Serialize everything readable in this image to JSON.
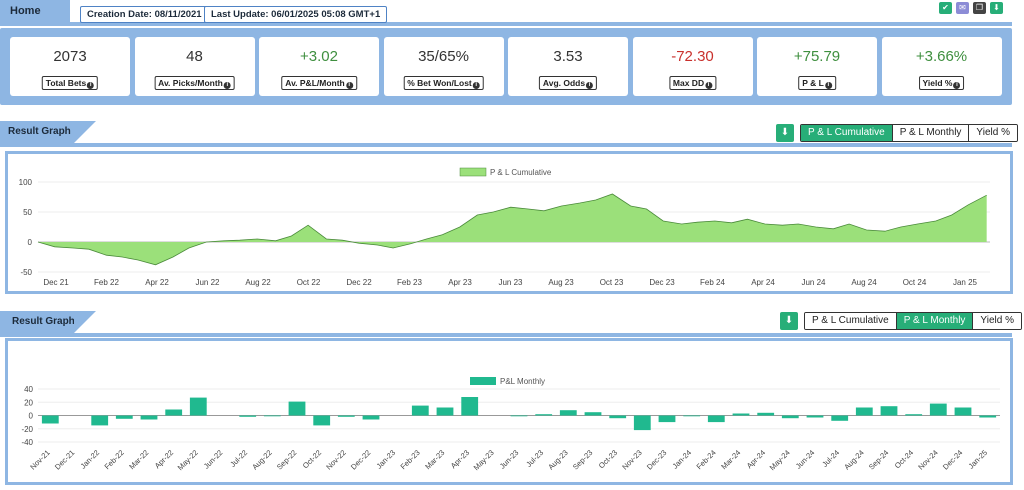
{
  "header": {
    "home_label": "Home",
    "creation_date": "Creation Date: 08/11/2021",
    "last_update": "Last Update: 06/01/2025 05:08 GMT+1",
    "icons": [
      {
        "name": "check-icon",
        "color": "#27ae78",
        "glyph": "✔"
      },
      {
        "name": "mail-icon",
        "color": "#8c8cd6",
        "glyph": "✉"
      },
      {
        "name": "copy-icon",
        "color": "#444444",
        "glyph": "❐"
      },
      {
        "name": "download-icon",
        "color": "#27ae78",
        "glyph": "⬇"
      }
    ]
  },
  "stats": [
    {
      "value": "2073",
      "label": "Total Bets",
      "tone": ""
    },
    {
      "value": "48",
      "label": "Av. Picks/Month",
      "tone": ""
    },
    {
      "value": "+3.02",
      "label": "Av. P&L/Month",
      "tone": "pos"
    },
    {
      "value": "35/65%",
      "label": "% Bet Won/Lost",
      "tone": ""
    },
    {
      "value": "3.53",
      "label": "Avg. Odds",
      "tone": ""
    },
    {
      "value": "-72.30",
      "label": "Max DD",
      "tone": "neg"
    },
    {
      "value": "+75.79",
      "label": "P & L",
      "tone": "pos"
    },
    {
      "value": "+3.66%",
      "label": "Yield %",
      "tone": "pos"
    }
  ],
  "graph1": {
    "title": "Result Graph",
    "buttons": [
      "P & L Cumulative",
      "P & L Monthly",
      "Yield %"
    ],
    "active": 0
  },
  "graph2": {
    "title": "Result Graph",
    "buttons": [
      "P & L Cumulative",
      "P & L Monthly",
      "Yield %"
    ],
    "active": 1
  },
  "colors": {
    "accent": "#27ae78",
    "header_blue": "#8eb6e3",
    "area_fill": "#9be07a",
    "area_stroke": "#4a8a3a",
    "bar_fill": "#20b98f"
  },
  "chart_data": [
    {
      "type": "area",
      "legend": "P & L Cumulative",
      "ylim": [
        -50,
        100
      ],
      "yticks": [
        100,
        50,
        0,
        -50
      ],
      "xticks": [
        "Dec 21",
        "Feb 22",
        "Apr 22",
        "Jun 22",
        "Aug 22",
        "Oct 22",
        "Dec 22",
        "Feb 23",
        "Apr 23",
        "Jun 23",
        "Aug 23",
        "Oct 23",
        "Dec 23",
        "Feb 24",
        "Apr 24",
        "Jun 24",
        "Aug 24",
        "Oct 24",
        "Jan 25"
      ],
      "x": [
        "2021-11-20",
        "2021-12-10",
        "2022-01-01",
        "2022-01-20",
        "2022-02-10",
        "2022-03-01",
        "2022-03-20",
        "2022-04-10",
        "2022-05-01",
        "2022-05-20",
        "2022-06-10",
        "2022-07-01",
        "2022-07-20",
        "2022-08-10",
        "2022-09-01",
        "2022-09-20",
        "2022-10-10",
        "2022-11-01",
        "2022-11-20",
        "2022-12-10",
        "2023-01-01",
        "2023-01-20",
        "2023-02-10",
        "2023-03-01",
        "2023-03-20",
        "2023-04-10",
        "2023-05-01",
        "2023-05-20",
        "2023-06-10",
        "2023-07-01",
        "2023-07-20",
        "2023-08-10",
        "2023-09-01",
        "2023-09-20",
        "2023-10-10",
        "2023-11-01",
        "2023-11-20",
        "2023-12-10",
        "2024-01-01",
        "2024-01-20",
        "2024-02-10",
        "2024-03-01",
        "2024-03-20",
        "2024-04-10",
        "2024-05-01",
        "2024-05-20",
        "2024-06-10",
        "2024-07-01",
        "2024-07-20",
        "2024-08-10",
        "2024-09-01",
        "2024-09-20",
        "2024-10-10",
        "2024-11-01",
        "2024-11-20",
        "2024-12-10",
        "2025-01-01"
      ],
      "y": [
        0,
        -8,
        -10,
        -12,
        -22,
        -25,
        -30,
        -38,
        -25,
        -10,
        0,
        2,
        3,
        5,
        2,
        10,
        28,
        5,
        3,
        -2,
        -5,
        -10,
        -3,
        5,
        12,
        25,
        45,
        50,
        58,
        55,
        52,
        60,
        65,
        70,
        80,
        60,
        55,
        35,
        30,
        33,
        35,
        32,
        38,
        30,
        28,
        30,
        25,
        22,
        30,
        20,
        18,
        25,
        30,
        35,
        45,
        62,
        78
      ]
    },
    {
      "type": "bar",
      "legend": "P&L Monthly",
      "ylim": [
        -40,
        40
      ],
      "yticks": [
        40,
        20,
        0,
        -20,
        -40
      ],
      "categories": [
        "Nov-21",
        "Dec-21",
        "Jan-22",
        "Feb-22",
        "Mar-22",
        "Apr-22",
        "May-22",
        "Jun-22",
        "Jul-22",
        "Aug-22",
        "Sep-22",
        "Oct-22",
        "Nov-22",
        "Dec-22",
        "Jan-23",
        "Feb-23",
        "Mar-23",
        "Apr-23",
        "May-23",
        "Jun-23",
        "Jul-23",
        "Aug-23",
        "Sep-23",
        "Oct-23",
        "Nov-23",
        "Dec-23",
        "Jan-24",
        "Feb-24",
        "Mar-24",
        "Apr-24",
        "May-24",
        "Jun-24",
        "Jul-24",
        "Aug-24",
        "Sep-24",
        "Oct-24",
        "Nov-24",
        "Dec-24",
        "Jan-25"
      ],
      "values": [
        -12,
        0,
        -15,
        -5,
        -6,
        9,
        27,
        0,
        -2,
        -1,
        21,
        -15,
        -2,
        -6,
        0,
        15,
        12,
        28,
        0,
        -1,
        2,
        8,
        5,
        -4,
        -22,
        -10,
        -1,
        -10,
        3,
        4,
        -4,
        -3,
        -8,
        12,
        14,
        2,
        18,
        12,
        -3
      ]
    }
  ]
}
